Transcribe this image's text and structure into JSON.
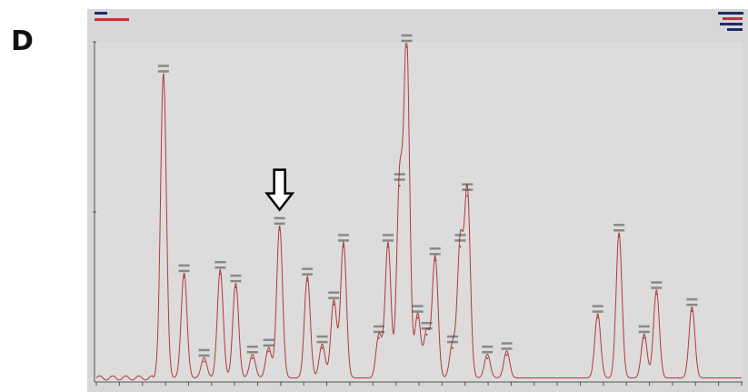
{
  "figure": {
    "panel_label": "D"
  },
  "chart_data": {
    "type": "line",
    "title": "",
    "xlabel": "",
    "ylabel": "",
    "grid": false,
    "legend": "none",
    "series_color": "#b03a3a",
    "arrow_color": "#000000",
    "xlim": [
      0,
      100
    ],
    "ylim": [
      0,
      100
    ],
    "peaks": [
      {
        "x": 10.4,
        "y": 90
      },
      {
        "x": 13.6,
        "y": 31
      },
      {
        "x": 16.7,
        "y": 6
      },
      {
        "x": 19.2,
        "y": 32
      },
      {
        "x": 21.6,
        "y": 28
      },
      {
        "x": 24.2,
        "y": 7
      },
      {
        "x": 26.7,
        "y": 9
      },
      {
        "x": 28.4,
        "y": 45
      },
      {
        "x": 32.7,
        "y": 30
      },
      {
        "x": 35.0,
        "y": 10
      },
      {
        "x": 36.8,
        "y": 23
      },
      {
        "x": 38.3,
        "y": 40
      },
      {
        "x": 43.8,
        "y": 13
      },
      {
        "x": 45.2,
        "y": 40
      },
      {
        "x": 47.0,
        "y": 58
      },
      {
        "x": 48.1,
        "y": 99
      },
      {
        "x": 49.8,
        "y": 19
      },
      {
        "x": 51.2,
        "y": 14
      },
      {
        "x": 52.5,
        "y": 36
      },
      {
        "x": 55.2,
        "y": 10
      },
      {
        "x": 56.4,
        "y": 40
      },
      {
        "x": 57.5,
        "y": 55
      },
      {
        "x": 60.6,
        "y": 7
      },
      {
        "x": 63.6,
        "y": 8
      },
      {
        "x": 77.7,
        "y": 19
      },
      {
        "x": 81.0,
        "y": 43
      },
      {
        "x": 84.9,
        "y": 13
      },
      {
        "x": 86.8,
        "y": 26
      },
      {
        "x": 92.3,
        "y": 21
      }
    ],
    "marked_peak_index": 7
  }
}
